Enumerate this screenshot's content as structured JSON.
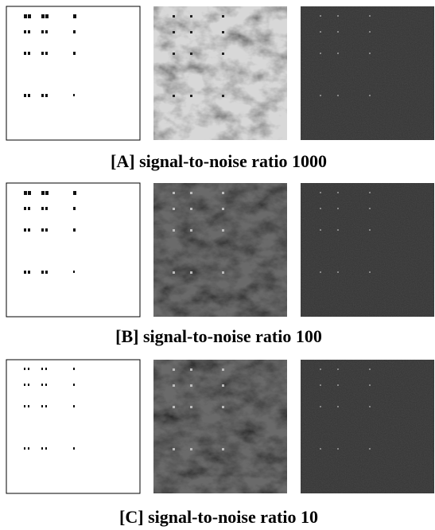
{
  "figure": {
    "rows": [
      {
        "caption": "[A] signal-to-noise ratio 1000"
      },
      {
        "caption": "[B] signal-to-noise ratio 100"
      },
      {
        "caption": "[C] signal-to-noise ratio 10"
      }
    ]
  }
}
